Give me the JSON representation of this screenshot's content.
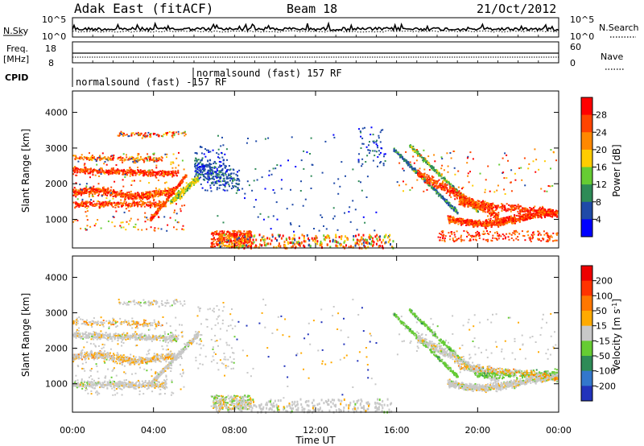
{
  "header": {
    "radar": "Adak East (fitACF)",
    "beam": "Beam 18",
    "date": "21/Oct/2012"
  },
  "nsky_panel": {
    "left_label": "N.Sky",
    "right_label": "N.Search",
    "ticks": [
      "10^5",
      "10^0"
    ]
  },
  "freq_panel": {
    "left_label": "Freq.",
    "left_unit": "[MHz]",
    "left_ticks": [
      "18",
      "8"
    ],
    "right_label": "Nave",
    "right_ticks": [
      "60",
      "0"
    ]
  },
  "cpid": {
    "label": "CPID",
    "program_a": "normalsound (fast) -157 RF",
    "program_b": "normalsound (fast) 157 RF"
  },
  "chart_data": [
    {
      "type": "heatmap",
      "name": "power",
      "ylabel": "Slant Range [km]",
      "ylim": [
        200,
        4600
      ],
      "yticks": [
        "1000",
        "2000",
        "3000",
        "4000"
      ],
      "x": [
        "00:00",
        "04:00",
        "08:00",
        "12:00",
        "16:00",
        "20:00",
        "00:00"
      ],
      "colorbar": {
        "label": "Power [dB]",
        "ticks": [
          "4",
          "8",
          "12",
          "16",
          "20",
          "24",
          "28"
        ],
        "colors": [
          "#0000ff",
          "#1f4aa8",
          "#2e8b57",
          "#66cc33",
          "#ffcc00",
          "#ff8800",
          "#ff4400",
          "#ff0000"
        ]
      }
    },
    {
      "type": "heatmap",
      "name": "velocity",
      "xlabel": "Time UT",
      "ylabel": "Slant Range [km]",
      "ylim": [
        200,
        4600
      ],
      "yticks": [
        "1000",
        "2000",
        "3000",
        "4000"
      ],
      "x": [
        "00:00",
        "04:00",
        "08:00",
        "12:00",
        "16:00",
        "20:00",
        "00:00"
      ],
      "colorbar": {
        "label": "Velocity [m s^-1]",
        "ticks": [
          "200",
          "100",
          "50",
          "15",
          "-15",
          "-50",
          "-100",
          "-200"
        ],
        "colors": [
          "#2233bb",
          "#3377cc",
          "#2e8b57",
          "#66cc33",
          "#c8c8c8",
          "#ffaa00",
          "#ff7700",
          "#ff3300",
          "#ee0000"
        ]
      }
    }
  ]
}
